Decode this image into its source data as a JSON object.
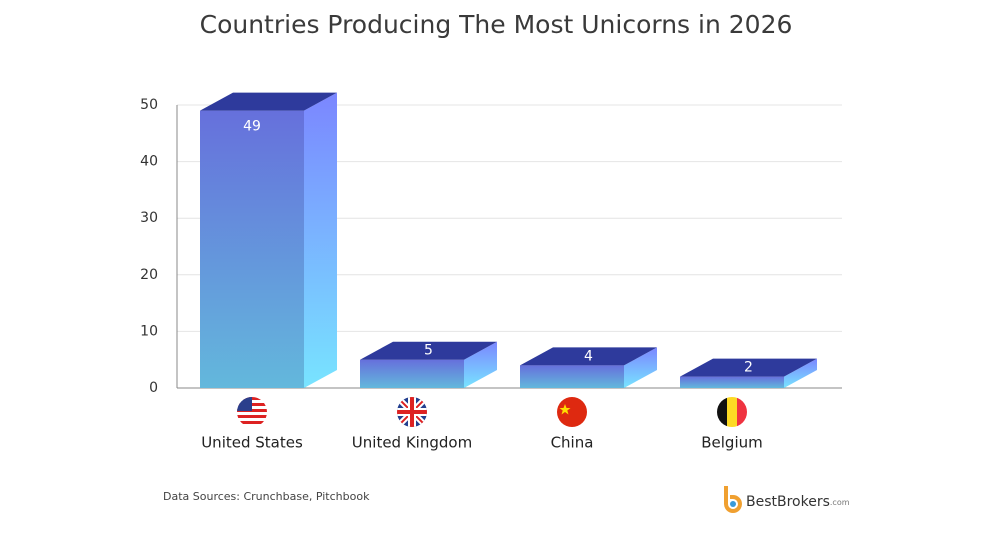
{
  "chart_data": {
    "type": "bar3d",
    "title": "Countries Producing The Most Unicorns in 2026",
    "categories": [
      "United States",
      "United Kingdom",
      "China",
      "Belgium"
    ],
    "values": [
      49,
      5,
      4,
      2
    ],
    "color": "#6870dc",
    "ylim": [
      0,
      50
    ],
    "yticks": [
      0,
      10,
      20,
      30,
      40,
      50
    ],
    "grid": true,
    "source": "Data Sources: Crunchbase, Pitchbook",
    "brand": "BestBrokers",
    "brand_suffix": ".com"
  }
}
